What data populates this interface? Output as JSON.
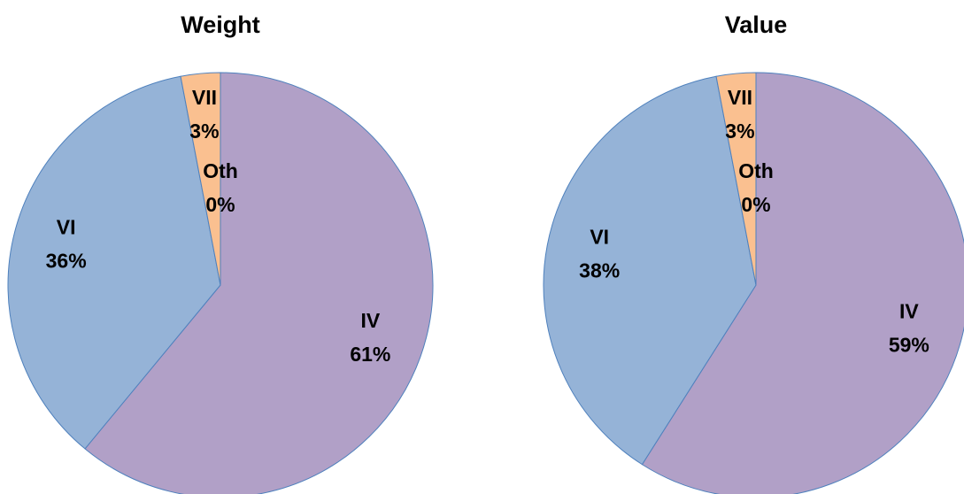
{
  "chart_data": [
    {
      "type": "pie",
      "title": "Weight",
      "categories": [
        "IV",
        "VI",
        "VII",
        "Oth"
      ],
      "values": [
        61,
        36,
        3,
        0
      ],
      "value_labels": [
        "61%",
        "36%",
        "3%",
        "0%"
      ],
      "colors": [
        "#b1a0c7",
        "#95b3d7",
        "#fac090",
        "#c4d79b"
      ]
    },
    {
      "type": "pie",
      "title": "Value",
      "categories": [
        "IV",
        "VI",
        "VII",
        "Oth"
      ],
      "values": [
        59,
        38,
        3,
        0
      ],
      "value_labels": [
        "59%",
        "38%",
        "3%",
        "0%"
      ],
      "colors": [
        "#b1a0c7",
        "#95b3d7",
        "#fac090",
        "#c4d79b"
      ]
    }
  ]
}
